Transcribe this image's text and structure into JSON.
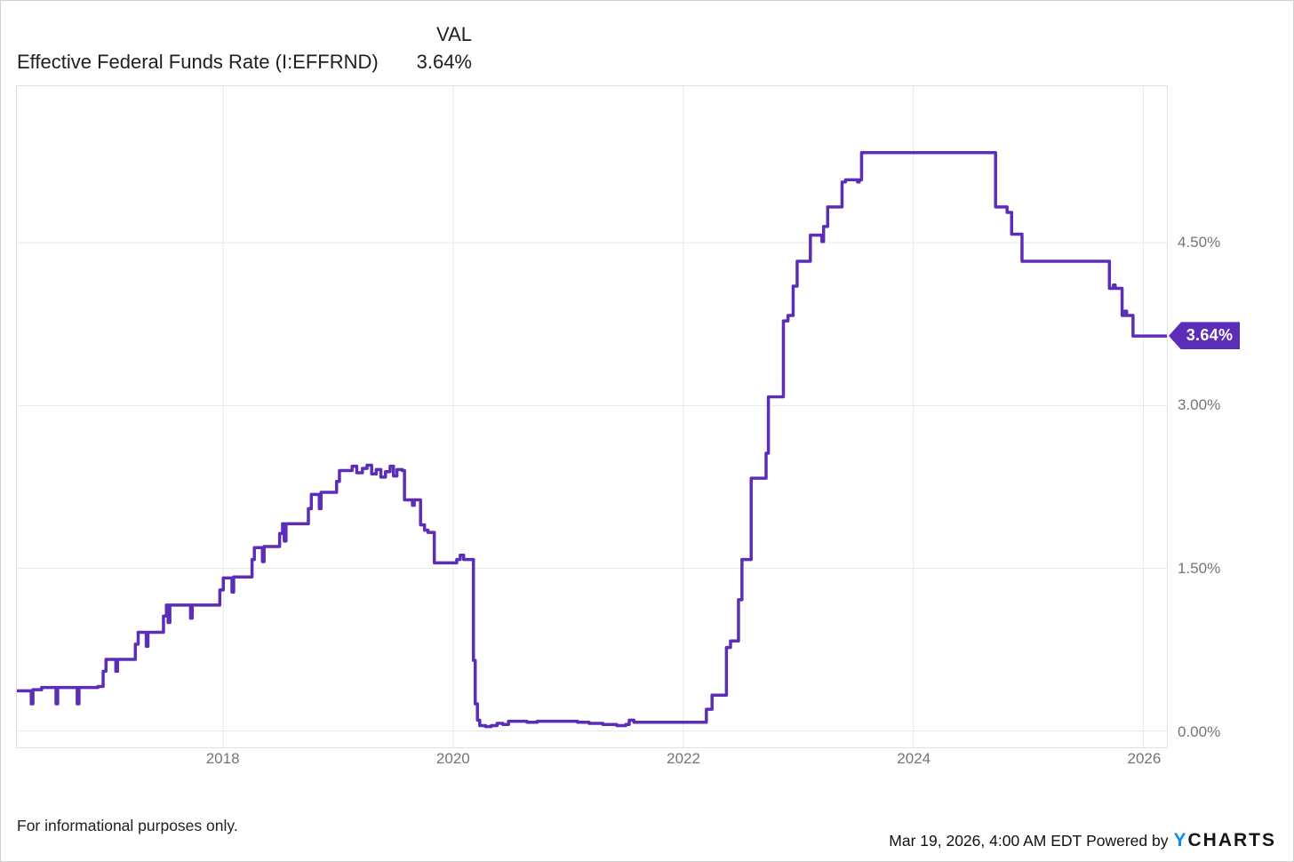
{
  "header": {
    "title": "Effective Federal Funds Rate (I:EFFRND)",
    "val_label": "VAL",
    "val_value": "3.64%"
  },
  "badge": {
    "label": "3.64%"
  },
  "footer": {
    "disclaimer": "For informational purposes only.",
    "timestamp": "Mar 19, 2026, 4:00 AM EDT",
    "powered_by": " Powered by",
    "logo_y": "Y",
    "logo_charts": "CHARTS"
  },
  "colors": {
    "line": "#5b2db8",
    "badge_bg": "#5b2db8",
    "badge_text": "#ffffff",
    "grid": "#e8e8e8",
    "axis_text": "#757575",
    "logo_blue": "#0d8bf2"
  },
  "chart_data": {
    "type": "line",
    "title": "Effective Federal Funds Rate (I:EFFRND)",
    "series_name": "Effective Federal Funds Rate",
    "unit": "percent",
    "interpolation": "step-after",
    "grid": true,
    "legend_position": "none",
    "last_value": 3.64,
    "x_domain": [
      2016.205,
      2026.205
    ],
    "y_domain": [
      -0.151,
      5.943
    ],
    "x_ticks": [
      {
        "v": 2018,
        "label": "2018"
      },
      {
        "v": 2020,
        "label": "2020"
      },
      {
        "v": 2022,
        "label": "2022"
      },
      {
        "v": 2024,
        "label": "2024"
      },
      {
        "v": 2026,
        "label": "2026"
      }
    ],
    "y_ticks": [
      {
        "v": 4.5,
        "label": "4.50%"
      },
      {
        "v": 3.0,
        "label": "3.00%"
      },
      {
        "v": 1.5,
        "label": "1.50%"
      },
      {
        "v": 0.0,
        "label": "0.00%"
      }
    ],
    "points": [
      [
        2016.205,
        0.37
      ],
      [
        2016.32,
        0.37
      ],
      [
        2016.33,
        0.25
      ],
      [
        2016.345,
        0.38
      ],
      [
        2016.42,
        0.4
      ],
      [
        2016.53,
        0.4
      ],
      [
        2016.545,
        0.25
      ],
      [
        2016.56,
        0.4
      ],
      [
        2016.715,
        0.4
      ],
      [
        2016.73,
        0.25
      ],
      [
        2016.745,
        0.4
      ],
      [
        2016.91,
        0.41
      ],
      [
        2016.955,
        0.55
      ],
      [
        2016.98,
        0.66
      ],
      [
        2017.055,
        0.66
      ],
      [
        2017.065,
        0.55
      ],
      [
        2017.08,
        0.66
      ],
      [
        2017.21,
        0.66
      ],
      [
        2017.235,
        0.8
      ],
      [
        2017.26,
        0.91
      ],
      [
        2017.32,
        0.91
      ],
      [
        2017.33,
        0.78
      ],
      [
        2017.345,
        0.91
      ],
      [
        2017.46,
        0.91
      ],
      [
        2017.48,
        1.06
      ],
      [
        2017.505,
        1.16
      ],
      [
        2017.52,
        1.0
      ],
      [
        2017.535,
        1.16
      ],
      [
        2017.705,
        1.16
      ],
      [
        2017.715,
        1.04
      ],
      [
        2017.73,
        1.16
      ],
      [
        2017.945,
        1.16
      ],
      [
        2017.97,
        1.3
      ],
      [
        2018.0,
        1.41
      ],
      [
        2018.065,
        1.41
      ],
      [
        2018.075,
        1.28
      ],
      [
        2018.09,
        1.42
      ],
      [
        2018.23,
        1.42
      ],
      [
        2018.25,
        1.58
      ],
      [
        2018.27,
        1.69
      ],
      [
        2018.33,
        1.69
      ],
      [
        2018.34,
        1.56
      ],
      [
        2018.355,
        1.7
      ],
      [
        2018.47,
        1.7
      ],
      [
        2018.49,
        1.82
      ],
      [
        2018.515,
        1.91
      ],
      [
        2018.53,
        1.75
      ],
      [
        2018.545,
        1.91
      ],
      [
        2018.71,
        1.91
      ],
      [
        2018.74,
        2.05
      ],
      [
        2018.765,
        2.18
      ],
      [
        2018.825,
        2.18
      ],
      [
        2018.835,
        2.05
      ],
      [
        2018.85,
        2.2
      ],
      [
        2018.96,
        2.2
      ],
      [
        2018.985,
        2.3
      ],
      [
        2019.01,
        2.4
      ],
      [
        2019.08,
        2.4
      ],
      [
        2019.12,
        2.44
      ],
      [
        2019.16,
        2.38
      ],
      [
        2019.21,
        2.42
      ],
      [
        2019.25,
        2.45
      ],
      [
        2019.29,
        2.37
      ],
      [
        2019.33,
        2.41
      ],
      [
        2019.37,
        2.34
      ],
      [
        2019.41,
        2.39
      ],
      [
        2019.45,
        2.44
      ],
      [
        2019.48,
        2.35
      ],
      [
        2019.51,
        2.41
      ],
      [
        2019.555,
        2.4
      ],
      [
        2019.575,
        2.13
      ],
      [
        2019.63,
        2.13
      ],
      [
        2019.645,
        2.08
      ],
      [
        2019.66,
        2.13
      ],
      [
        2019.7,
        2.13
      ],
      [
        2019.715,
        1.9
      ],
      [
        2019.75,
        1.85
      ],
      [
        2019.78,
        1.83
      ],
      [
        2019.82,
        1.83
      ],
      [
        2019.835,
        1.55
      ],
      [
        2019.95,
        1.55
      ],
      [
        2020.03,
        1.58
      ],
      [
        2020.06,
        1.62
      ],
      [
        2020.09,
        1.58
      ],
      [
        2020.16,
        1.58
      ],
      [
        2020.175,
        0.65
      ],
      [
        2020.19,
        0.25
      ],
      [
        2020.21,
        0.1
      ],
      [
        2020.23,
        0.05
      ],
      [
        2020.28,
        0.04
      ],
      [
        2020.33,
        0.05
      ],
      [
        2020.38,
        0.07
      ],
      [
        2020.43,
        0.06
      ],
      [
        2020.48,
        0.09
      ],
      [
        2020.56,
        0.09
      ],
      [
        2020.64,
        0.08
      ],
      [
        2020.73,
        0.09
      ],
      [
        2020.85,
        0.09
      ],
      [
        2020.97,
        0.09
      ],
      [
        2021.08,
        0.08
      ],
      [
        2021.18,
        0.07
      ],
      [
        2021.3,
        0.06
      ],
      [
        2021.42,
        0.05
      ],
      [
        2021.5,
        0.06
      ],
      [
        2021.53,
        0.1
      ],
      [
        2021.57,
        0.08
      ],
      [
        2021.7,
        0.08
      ],
      [
        2021.85,
        0.08
      ],
      [
        2022.0,
        0.08
      ],
      [
        2022.16,
        0.08
      ],
      [
        2022.2,
        0.2
      ],
      [
        2022.25,
        0.33
      ],
      [
        2022.36,
        0.33
      ],
      [
        2022.375,
        0.77
      ],
      [
        2022.41,
        0.83
      ],
      [
        2022.46,
        0.83
      ],
      [
        2022.48,
        1.21
      ],
      [
        2022.51,
        1.58
      ],
      [
        2022.57,
        1.58
      ],
      [
        2022.59,
        2.33
      ],
      [
        2022.7,
        2.33
      ],
      [
        2022.72,
        2.56
      ],
      [
        2022.74,
        3.08
      ],
      [
        2022.85,
        3.08
      ],
      [
        2022.87,
        3.78
      ],
      [
        2022.91,
        3.83
      ],
      [
        2022.955,
        4.1
      ],
      [
        2022.99,
        4.33
      ],
      [
        2023.09,
        4.33
      ],
      [
        2023.105,
        4.57
      ],
      [
        2023.19,
        4.57
      ],
      [
        2023.205,
        4.51
      ],
      [
        2023.22,
        4.65
      ],
      [
        2023.255,
        4.83
      ],
      [
        2023.36,
        4.83
      ],
      [
        2023.38,
        5.06
      ],
      [
        2023.41,
        5.08
      ],
      [
        2023.5,
        5.08
      ],
      [
        2023.515,
        5.06
      ],
      [
        2023.53,
        5.08
      ],
      [
        2023.55,
        5.33
      ],
      [
        2023.75,
        5.33
      ],
      [
        2024.0,
        5.33
      ],
      [
        2024.35,
        5.33
      ],
      [
        2024.7,
        5.33
      ],
      [
        2024.715,
        4.83
      ],
      [
        2024.8,
        4.83
      ],
      [
        2024.815,
        4.78
      ],
      [
        2024.855,
        4.58
      ],
      [
        2024.9,
        4.58
      ],
      [
        2024.945,
        4.33
      ],
      [
        2025.0,
        4.33
      ],
      [
        2025.35,
        4.33
      ],
      [
        2025.69,
        4.33
      ],
      [
        2025.705,
        4.08
      ],
      [
        2025.74,
        4.11
      ],
      [
        2025.755,
        4.08
      ],
      [
        2025.8,
        4.08
      ],
      [
        2025.815,
        3.83
      ],
      [
        2025.84,
        3.87
      ],
      [
        2025.855,
        3.83
      ],
      [
        2025.895,
        3.83
      ],
      [
        2025.91,
        3.64
      ],
      [
        2026.0,
        3.64
      ],
      [
        2026.205,
        3.64
      ]
    ]
  }
}
